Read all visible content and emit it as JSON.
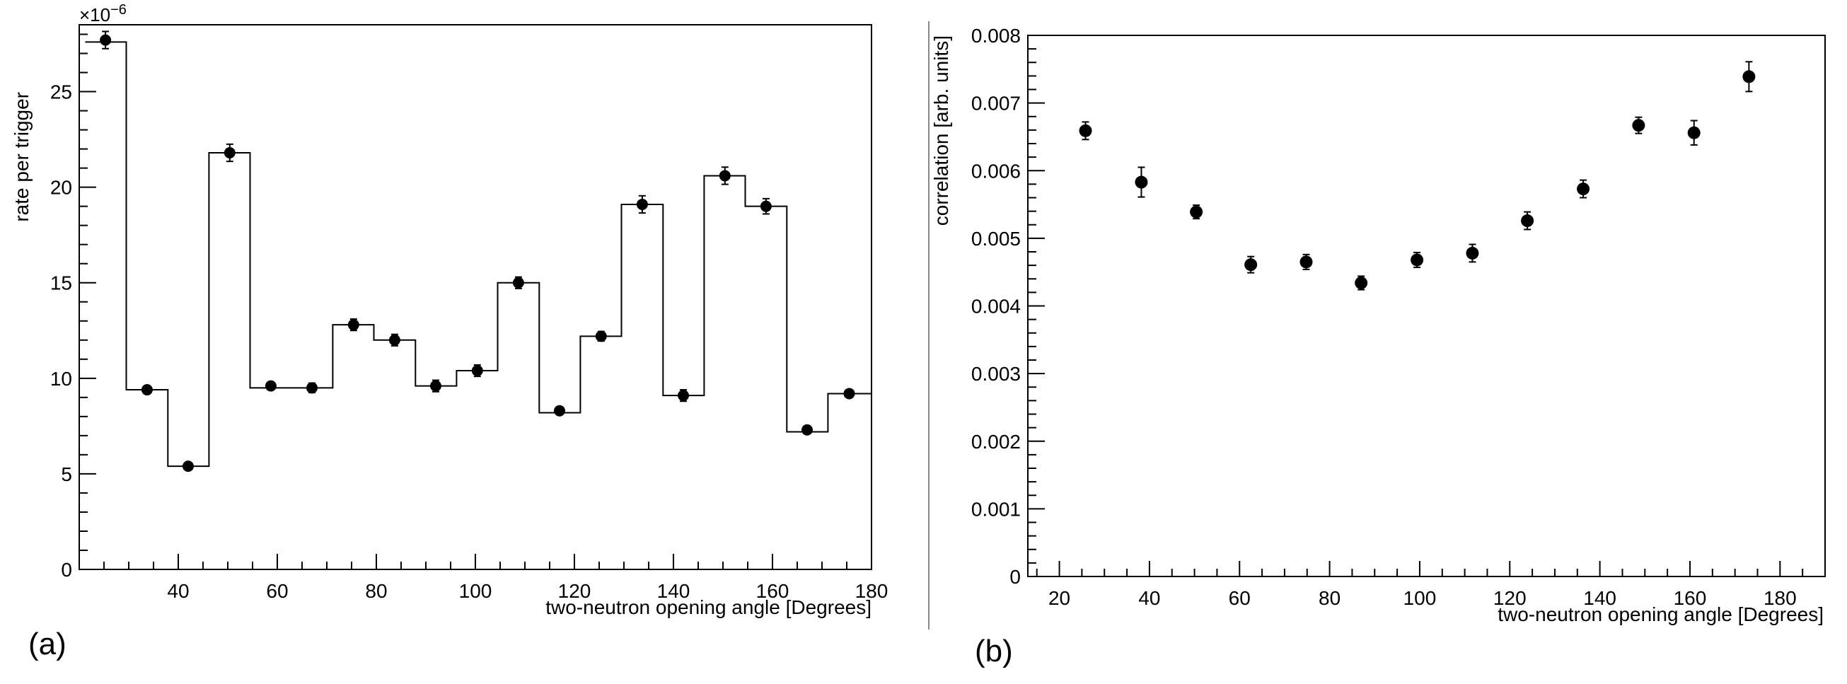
{
  "chart_data": [
    {
      "panel": "(a)",
      "type": "bar",
      "bar_style": "step-histogram with error-bar points",
      "xlabel": "two-neutron opening angle [Degrees]",
      "ylabel": "rate per trigger",
      "y_multiplier": "×10",
      "y_multiplier_exp": "−6",
      "xlim": [
        20,
        180
      ],
      "ylim": [
        0,
        28.5
      ],
      "xticks": [
        40,
        60,
        80,
        100,
        120,
        140,
        160,
        180
      ],
      "yticks": [
        0,
        5,
        10,
        15,
        20,
        25
      ],
      "grid": false,
      "bin_edges": [
        21.2,
        29.5,
        37.9,
        46.2,
        54.5,
        62.9,
        71.2,
        79.5,
        87.9,
        96.2,
        104.5,
        112.9,
        121.2,
        129.5,
        137.9,
        146.2,
        154.5,
        162.9,
        171.2,
        180
      ],
      "histogram": [
        27.6,
        9.4,
        5.4,
        21.8,
        9.5,
        9.5,
        12.8,
        12.0,
        9.6,
        10.4,
        15.0,
        8.2,
        12.2,
        19.1,
        9.1,
        20.6,
        19.0,
        7.2,
        9.2
      ],
      "points_x": [
        25.3,
        33.7,
        42.0,
        50.4,
        58.7,
        67.0,
        75.4,
        83.7,
        92.0,
        100.4,
        108.7,
        117.0,
        125.4,
        133.7,
        142.0,
        150.4,
        158.7,
        167.0,
        175.5
      ],
      "points_y": [
        27.7,
        9.4,
        5.4,
        21.8,
        9.6,
        9.5,
        12.8,
        12.0,
        9.6,
        10.4,
        15.0,
        8.3,
        12.2,
        19.1,
        9.1,
        20.6,
        19.0,
        7.3,
        9.2
      ],
      "errors": [
        0.45,
        0.2,
        0.15,
        0.45,
        0.2,
        0.25,
        0.3,
        0.3,
        0.3,
        0.3,
        0.3,
        0.2,
        0.25,
        0.45,
        0.3,
        0.45,
        0.4,
        0.15,
        0.2
      ]
    },
    {
      "panel": "(b)",
      "type": "scatter",
      "xlabel": "two-neutron opening angle [Degrees]",
      "ylabel": "correlation [arb. units]",
      "xlim": [
        13,
        190
      ],
      "ylim": [
        0,
        0.008
      ],
      "xticks": [
        20,
        40,
        60,
        80,
        100,
        120,
        140,
        160,
        180
      ],
      "yticks": [
        "0",
        "0.001",
        "0.002",
        "0.003",
        "0.004",
        "0.005",
        "0.006",
        "0.007",
        "0.008"
      ],
      "grid": false,
      "x": [
        25.8,
        38.2,
        50.4,
        62.5,
        74.8,
        87.0,
        99.4,
        111.7,
        123.9,
        136.3,
        148.6,
        160.9,
        173.1
      ],
      "y": [
        0.00659,
        0.00583,
        0.00539,
        0.00461,
        0.00465,
        0.00434,
        0.00468,
        0.00478,
        0.00526,
        0.00573,
        0.00667,
        0.00656,
        0.00739
      ],
      "errors": [
        0.00013,
        0.00022,
        0.0001,
        0.00012,
        0.00011,
        0.0001,
        0.00011,
        0.00013,
        0.00013,
        0.00013,
        0.00012,
        0.00018,
        0.00022
      ]
    }
  ]
}
